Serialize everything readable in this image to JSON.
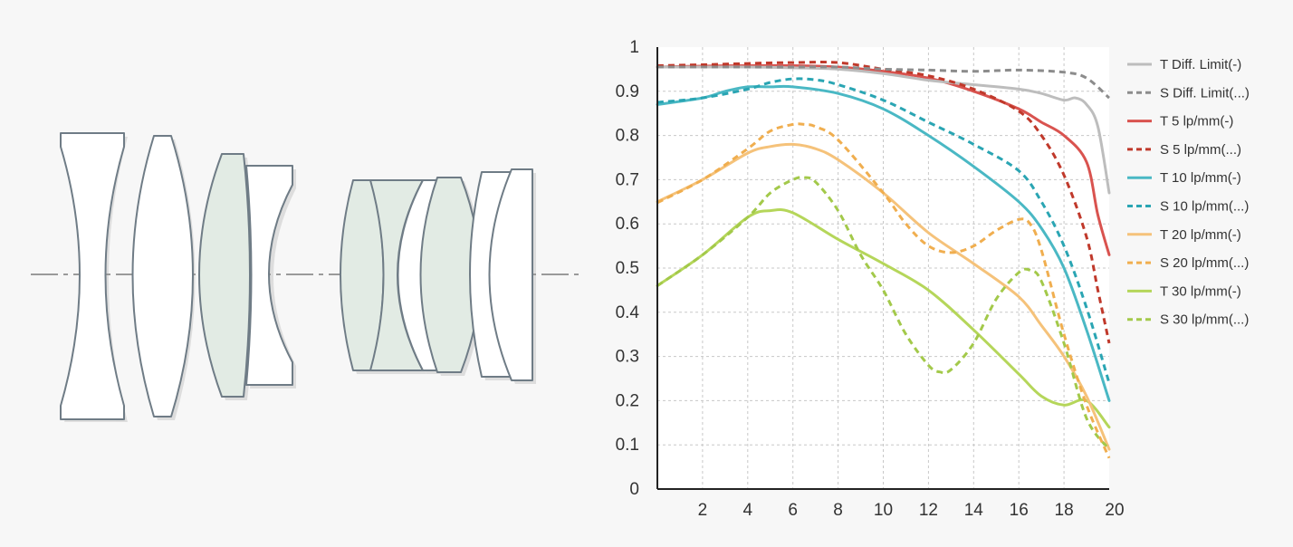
{
  "diagram": {
    "optical_axis_color": "#9a9a9a",
    "lens_stroke": "#6f7c86",
    "lens_fill_clear": "#ffffff",
    "lens_fill_tinted": "#e2ebe4"
  },
  "chart_data": {
    "type": "line",
    "title": "",
    "xlabel": "",
    "ylabel": "",
    "xlim": [
      0,
      20
    ],
    "ylim": [
      0,
      1
    ],
    "x_ticks": [
      "2",
      "4",
      "6",
      "8",
      "10",
      "12",
      "14",
      "16",
      "18",
      "20"
    ],
    "y_ticks": [
      "0",
      "0.1",
      "0.2",
      "0.3",
      "0.4",
      "0.5",
      "0.6",
      "0.7",
      "0.8",
      "0.9",
      "1"
    ],
    "grid": true,
    "legend_position": "right",
    "series": [
      {
        "name": "T Diff. Limit(-)",
        "color": "#bdbdbd",
        "dashed": false,
        "x": [
          0,
          2,
          4,
          6,
          8,
          10,
          12,
          14,
          16,
          17,
          18,
          18.5,
          19,
          19.5,
          20
        ],
        "y": [
          0.955,
          0.955,
          0.955,
          0.953,
          0.95,
          0.94,
          0.925,
          0.915,
          0.905,
          0.895,
          0.88,
          0.885,
          0.87,
          0.82,
          0.67
        ]
      },
      {
        "name": "S Diff. Limit(...)",
        "color": "#8c8c8c",
        "dashed": true,
        "x": [
          0,
          2,
          4,
          6,
          8,
          10,
          12,
          14,
          16,
          18,
          19,
          20
        ],
        "y": [
          0.955,
          0.955,
          0.955,
          0.955,
          0.955,
          0.95,
          0.948,
          0.945,
          0.948,
          0.943,
          0.93,
          0.885
        ]
      },
      {
        "name": "T 5 lp/mm(-)",
        "color": "#d9534f",
        "dashed": false,
        "x": [
          0,
          2,
          4,
          6,
          8,
          10,
          12,
          14,
          16,
          17,
          18,
          19,
          19.5,
          20
        ],
        "y": [
          0.955,
          0.957,
          0.958,
          0.958,
          0.955,
          0.945,
          0.93,
          0.9,
          0.86,
          0.83,
          0.8,
          0.74,
          0.62,
          0.53
        ]
      },
      {
        "name": "S 5 lp/mm(...)",
        "color": "#c0392b",
        "dashed": true,
        "x": [
          0,
          2,
          4,
          6,
          8,
          10,
          12,
          14,
          16,
          17,
          18,
          19,
          19.5,
          20
        ],
        "y": [
          0.958,
          0.96,
          0.963,
          0.965,
          0.965,
          0.95,
          0.935,
          0.905,
          0.855,
          0.8,
          0.71,
          0.57,
          0.45,
          0.33
        ]
      },
      {
        "name": "T 10 lp/mm(-)",
        "color": "#4ab8c4",
        "dashed": false,
        "x": [
          0,
          2,
          3,
          4,
          5,
          6,
          8,
          10,
          12,
          14,
          16,
          17,
          18,
          19,
          20
        ],
        "y": [
          0.87,
          0.885,
          0.9,
          0.91,
          0.91,
          0.91,
          0.895,
          0.86,
          0.8,
          0.73,
          0.65,
          0.59,
          0.5,
          0.36,
          0.2
        ]
      },
      {
        "name": "S 10 lp/mm(...)",
        "color": "#2aa5b3",
        "dashed": true,
        "x": [
          0,
          2,
          4,
          5,
          6,
          7,
          8,
          10,
          12,
          14,
          16,
          17,
          18,
          19,
          20
        ],
        "y": [
          0.875,
          0.885,
          0.905,
          0.92,
          0.928,
          0.926,
          0.915,
          0.88,
          0.83,
          0.78,
          0.72,
          0.65,
          0.55,
          0.41,
          0.24
        ]
      },
      {
        "name": "T 20 lp/mm(-)",
        "color": "#f5c27a",
        "dashed": false,
        "x": [
          0,
          2,
          4,
          5,
          6,
          7,
          8,
          10,
          12,
          14,
          16,
          17,
          18,
          19,
          20
        ],
        "y": [
          0.65,
          0.7,
          0.76,
          0.775,
          0.78,
          0.77,
          0.745,
          0.67,
          0.58,
          0.51,
          0.435,
          0.37,
          0.3,
          0.21,
          0.09
        ]
      },
      {
        "name": "S 20 lp/mm(...)",
        "color": "#f0ae4f",
        "dashed": true,
        "x": [
          0,
          2,
          4,
          5,
          6,
          6.5,
          7,
          8,
          10,
          11,
          12,
          13,
          14,
          15,
          16,
          16.5,
          17,
          18,
          19,
          20
        ],
        "y": [
          0.648,
          0.7,
          0.77,
          0.81,
          0.825,
          0.825,
          0.82,
          0.79,
          0.67,
          0.6,
          0.55,
          0.535,
          0.55,
          0.585,
          0.61,
          0.6,
          0.54,
          0.35,
          0.19,
          0.07
        ]
      },
      {
        "name": "T 30 lp/mm(-)",
        "color": "#b5d65a",
        "dashed": false,
        "x": [
          0,
          2,
          4,
          5,
          6,
          8,
          10,
          12,
          14,
          16,
          17,
          18,
          19,
          20
        ],
        "y": [
          0.46,
          0.53,
          0.615,
          0.63,
          0.625,
          0.565,
          0.51,
          0.45,
          0.36,
          0.26,
          0.21,
          0.19,
          0.2,
          0.14
        ]
      },
      {
        "name": "S 30 lp/mm(...)",
        "color": "#a3c94a",
        "dashed": true,
        "x": [
          0,
          2,
          4,
          5,
          6,
          6.5,
          7,
          8,
          9,
          10,
          11,
          12,
          12.5,
          13,
          14,
          15,
          16,
          16.5,
          17,
          18,
          19,
          20
        ],
        "y": [
          0.46,
          0.53,
          0.615,
          0.67,
          0.7,
          0.705,
          0.695,
          0.63,
          0.53,
          0.45,
          0.35,
          0.28,
          0.265,
          0.27,
          0.33,
          0.43,
          0.49,
          0.495,
          0.47,
          0.33,
          0.16,
          0.09
        ]
      }
    ]
  }
}
